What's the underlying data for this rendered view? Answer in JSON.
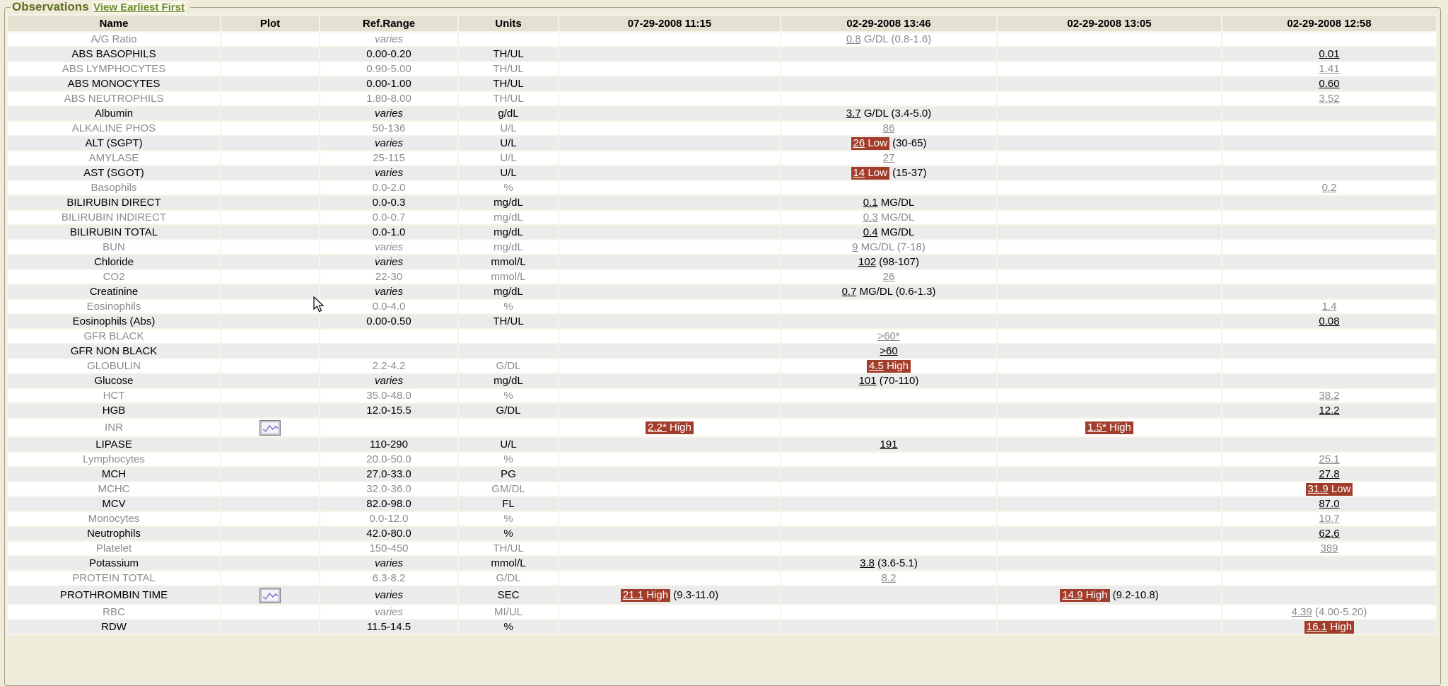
{
  "legend": {
    "title": "Observations",
    "link_label": "View Earliest First"
  },
  "columns": [
    "Name",
    "Plot",
    "Ref.Range",
    "Units",
    "07-29-2008 11:15",
    "02-29-2008 13:46",
    "02-29-2008 13:05",
    "02-29-2008 12:58"
  ],
  "colors": {
    "page_background": "#f0ecdb",
    "header_background": "#e4e0d2",
    "row_alt_background": "#ebebeb",
    "row_background": "#ffffff",
    "abnormal_flag_background": "#a33d2b",
    "abnormal_flag_text": "#ffffff",
    "title_green": "#5c6e1f",
    "link_green": "#6f8b2d",
    "muted_row_text": "#8b8b8b"
  },
  "icons": {
    "plot_icon_name": "plot-chart-icon",
    "cursor_icon_name": "mouse-cursor-icon"
  },
  "rows": [
    {
      "name": "A/G Ratio",
      "plot": false,
      "ref": "varies",
      "units": "",
      "values": [
        null,
        {
          "v": "0.8",
          "flag": null,
          "rest": "G/DL (0.8-1.6)"
        },
        null,
        null
      ]
    },
    {
      "name": "ABS BASOPHILS",
      "plot": false,
      "ref": "0.00-0.20",
      "units": "TH/UL",
      "values": [
        null,
        null,
        null,
        {
          "v": "0.01",
          "flag": null,
          "rest": null
        }
      ]
    },
    {
      "name": "ABS LYMPHOCYTES",
      "plot": false,
      "ref": "0.90-5.00",
      "units": "TH/UL",
      "values": [
        null,
        null,
        null,
        {
          "v": "1.41",
          "flag": null,
          "rest": null
        }
      ]
    },
    {
      "name": "ABS MONOCYTES",
      "plot": false,
      "ref": "0.00-1.00",
      "units": "TH/UL",
      "values": [
        null,
        null,
        null,
        {
          "v": "0.60",
          "flag": null,
          "rest": null
        }
      ]
    },
    {
      "name": "ABS NEUTROPHILS",
      "plot": false,
      "ref": "1.80-8.00",
      "units": "TH/UL",
      "values": [
        null,
        null,
        null,
        {
          "v": "3.52",
          "flag": null,
          "rest": null
        }
      ]
    },
    {
      "name": "Albumin",
      "plot": false,
      "ref": "varies",
      "units": "g/dL",
      "values": [
        null,
        {
          "v": "3.7",
          "flag": null,
          "rest": "G/DL (3.4-5.0)"
        },
        null,
        null
      ]
    },
    {
      "name": "ALKALINE PHOS",
      "plot": false,
      "ref": "50-136",
      "units": "U/L",
      "values": [
        null,
        {
          "v": "86",
          "flag": null,
          "rest": null
        },
        null,
        null
      ]
    },
    {
      "name": "ALT (SGPT)",
      "plot": false,
      "ref": "varies",
      "units": "U/L",
      "values": [
        null,
        {
          "v": "26",
          "flag": "Low",
          "rest": "(30-65)"
        },
        null,
        null
      ]
    },
    {
      "name": "AMYLASE",
      "plot": false,
      "ref": "25-115",
      "units": "U/L",
      "values": [
        null,
        {
          "v": "27",
          "flag": null,
          "rest": null
        },
        null,
        null
      ]
    },
    {
      "name": "AST (SGOT)",
      "plot": false,
      "ref": "varies",
      "units": "U/L",
      "values": [
        null,
        {
          "v": "14",
          "flag": "Low",
          "rest": "(15-37)"
        },
        null,
        null
      ]
    },
    {
      "name": "Basophils",
      "plot": false,
      "ref": "0.0-2.0",
      "units": "%",
      "values": [
        null,
        null,
        null,
        {
          "v": "0.2",
          "flag": null,
          "rest": null
        }
      ]
    },
    {
      "name": "BILIRUBIN DIRECT",
      "plot": false,
      "ref": "0.0-0.3",
      "units": "mg/dL",
      "values": [
        null,
        {
          "v": "0.1",
          "flag": null,
          "rest": "MG/DL"
        },
        null,
        null
      ]
    },
    {
      "name": "BILIRUBIN INDIRECT",
      "plot": false,
      "ref": "0.0-0.7",
      "units": "mg/dL",
      "values": [
        null,
        {
          "v": "0.3",
          "flag": null,
          "rest": "MG/DL"
        },
        null,
        null
      ]
    },
    {
      "name": "BILIRUBIN TOTAL",
      "plot": false,
      "ref": "0.0-1.0",
      "units": "mg/dL",
      "values": [
        null,
        {
          "v": "0.4",
          "flag": null,
          "rest": "MG/DL"
        },
        null,
        null
      ]
    },
    {
      "name": "BUN",
      "plot": false,
      "ref": "varies",
      "units": "mg/dL",
      "values": [
        null,
        {
          "v": "9",
          "flag": null,
          "rest": "MG/DL (7-18)"
        },
        null,
        null
      ]
    },
    {
      "name": "Chloride",
      "plot": false,
      "ref": "varies",
      "units": "mmol/L",
      "values": [
        null,
        {
          "v": "102",
          "flag": null,
          "rest": "(98-107)"
        },
        null,
        null
      ]
    },
    {
      "name": "CO2",
      "plot": false,
      "ref": "22-30",
      "units": "mmol/L",
      "values": [
        null,
        {
          "v": "26",
          "flag": null,
          "rest": null
        },
        null,
        null
      ]
    },
    {
      "name": "Creatinine",
      "plot": false,
      "ref": "varies",
      "units": "mg/dL",
      "values": [
        null,
        {
          "v": "0.7",
          "flag": null,
          "rest": "MG/DL (0.6-1.3)"
        },
        null,
        null
      ]
    },
    {
      "name": "Eosinophils",
      "plot": false,
      "ref": "0.0-4.0",
      "units": "%",
      "values": [
        null,
        null,
        null,
        {
          "v": "1.4",
          "flag": null,
          "rest": null
        }
      ]
    },
    {
      "name": "Eosinophils (Abs)",
      "plot": false,
      "ref": "0.00-0.50",
      "units": "TH/UL",
      "values": [
        null,
        null,
        null,
        {
          "v": "0.08",
          "flag": null,
          "rest": null
        }
      ]
    },
    {
      "name": "GFR BLACK",
      "plot": false,
      "ref": "",
      "units": "",
      "values": [
        null,
        {
          "v": ">60*",
          "flag": null,
          "rest": null
        },
        null,
        null
      ]
    },
    {
      "name": "GFR NON BLACK",
      "plot": false,
      "ref": "",
      "units": "",
      "values": [
        null,
        {
          "v": ">60",
          "flag": null,
          "rest": null
        },
        null,
        null
      ]
    },
    {
      "name": "GLOBULIN",
      "plot": false,
      "ref": "2.2-4.2",
      "units": "G/DL",
      "values": [
        null,
        {
          "v": "4.5",
          "flag": "High",
          "rest": null
        },
        null,
        null
      ]
    },
    {
      "name": "Glucose",
      "plot": false,
      "ref": "varies",
      "units": "mg/dL",
      "values": [
        null,
        {
          "v": "101",
          "flag": null,
          "rest": "(70-110)"
        },
        null,
        null
      ]
    },
    {
      "name": "HCT",
      "plot": false,
      "ref": "35.0-48.0",
      "units": "%",
      "values": [
        null,
        null,
        null,
        {
          "v": "38.2",
          "flag": null,
          "rest": null
        }
      ]
    },
    {
      "name": "HGB",
      "plot": false,
      "ref": "12.0-15.5",
      "units": "G/DL",
      "values": [
        null,
        null,
        null,
        {
          "v": "12.2",
          "flag": null,
          "rest": null
        }
      ]
    },
    {
      "name": "INR",
      "plot": true,
      "ref": "",
      "units": "",
      "values": [
        {
          "v": "2.2*",
          "flag": "High",
          "rest": null
        },
        null,
        {
          "v": "1.5*",
          "flag": "High",
          "rest": null
        },
        null
      ]
    },
    {
      "name": "LIPASE",
      "plot": false,
      "ref": "110-290",
      "units": "U/L",
      "values": [
        null,
        {
          "v": "191",
          "flag": null,
          "rest": null
        },
        null,
        null
      ]
    },
    {
      "name": "Lymphocytes",
      "plot": false,
      "ref": "20.0-50.0",
      "units": "%",
      "values": [
        null,
        null,
        null,
        {
          "v": "25.1",
          "flag": null,
          "rest": null
        }
      ]
    },
    {
      "name": "MCH",
      "plot": false,
      "ref": "27.0-33.0",
      "units": "PG",
      "values": [
        null,
        null,
        null,
        {
          "v": "27.8",
          "flag": null,
          "rest": null
        }
      ]
    },
    {
      "name": "MCHC",
      "plot": false,
      "ref": "32.0-36.0",
      "units": "GM/DL",
      "values": [
        null,
        null,
        null,
        {
          "v": "31.9",
          "flag": "Low",
          "rest": null
        }
      ]
    },
    {
      "name": "MCV",
      "plot": false,
      "ref": "82.0-98.0",
      "units": "FL",
      "values": [
        null,
        null,
        null,
        {
          "v": "87.0",
          "flag": null,
          "rest": null
        }
      ]
    },
    {
      "name": "Monocytes",
      "plot": false,
      "ref": "0.0-12.0",
      "units": "%",
      "values": [
        null,
        null,
        null,
        {
          "v": "10.7",
          "flag": null,
          "rest": null
        }
      ]
    },
    {
      "name": "Neutrophils",
      "plot": false,
      "ref": "42.0-80.0",
      "units": "%",
      "values": [
        null,
        null,
        null,
        {
          "v": "62.6",
          "flag": null,
          "rest": null
        }
      ]
    },
    {
      "name": "Platelet",
      "plot": false,
      "ref": "150-450",
      "units": "TH/UL",
      "values": [
        null,
        null,
        null,
        {
          "v": "389",
          "flag": null,
          "rest": null
        }
      ]
    },
    {
      "name": "Potassium",
      "plot": false,
      "ref": "varies",
      "units": "mmol/L",
      "values": [
        null,
        {
          "v": "3.8",
          "flag": null,
          "rest": "(3.6-5.1)"
        },
        null,
        null
      ]
    },
    {
      "name": "PROTEIN TOTAL",
      "plot": false,
      "ref": "6.3-8.2",
      "units": "G/DL",
      "values": [
        null,
        {
          "v": "8.2",
          "flag": null,
          "rest": null
        },
        null,
        null
      ]
    },
    {
      "name": "PROTHROMBIN TIME",
      "plot": true,
      "ref": "varies",
      "units": "SEC",
      "values": [
        {
          "v": "21.1",
          "flag": "High",
          "rest": "(9.3-11.0)"
        },
        null,
        {
          "v": "14.9",
          "flag": "High",
          "rest": "(9.2-10.8)"
        },
        null
      ]
    },
    {
      "name": "RBC",
      "plot": false,
      "ref": "varies",
      "units": "MI/UL",
      "values": [
        null,
        null,
        null,
        {
          "v": "4.39",
          "flag": null,
          "rest": "(4.00-5.20)"
        }
      ]
    },
    {
      "name": "RDW",
      "plot": false,
      "ref": "11.5-14.5",
      "units": "%",
      "values": [
        null,
        null,
        null,
        {
          "v": "16.1",
          "flag": "High",
          "rest": null
        }
      ]
    }
  ]
}
